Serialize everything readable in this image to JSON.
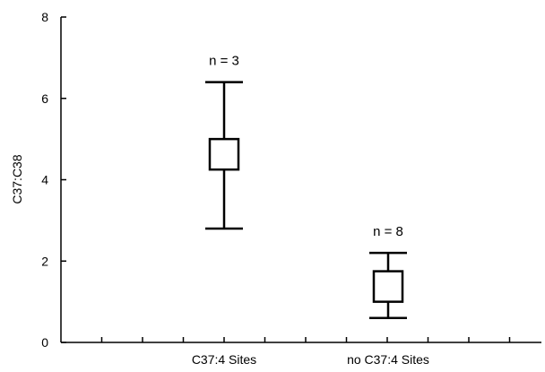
{
  "chart_data": {
    "type": "box",
    "title": "",
    "xlabel": "",
    "ylabel": "C37:C38",
    "ylim": [
      0,
      8
    ],
    "yticks": [
      0,
      2,
      4,
      6,
      8
    ],
    "categories": [
      "C37:4 Sites",
      "no C37:4 Sites"
    ],
    "boxes": [
      {
        "category": "C37:4 Sites",
        "whisker_low": 2.8,
        "q1": 4.25,
        "q3": 5.0,
        "whisker_high": 6.4,
        "annotation": "n = 3"
      },
      {
        "category": "no C37:4 Sites",
        "whisker_low": 0.6,
        "q1": 1.0,
        "q3": 1.75,
        "whisker_high": 2.2,
        "annotation": "n = 8"
      }
    ],
    "grid": false,
    "colors": {
      "stroke": "#000000",
      "box_fill": "#ffffff"
    }
  }
}
